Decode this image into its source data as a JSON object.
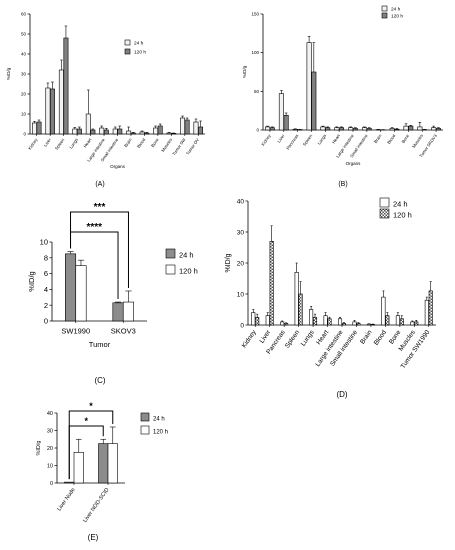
{
  "chart_data": [
    {
      "panel_label": "(A)",
      "type": "bar",
      "ylabel": "%ID/g",
      "xlabel": "Organs",
      "ylim": [
        0,
        60
      ],
      "yticks": [
        0,
        10,
        20,
        30,
        40,
        50,
        60
      ],
      "categories": [
        "Kidney",
        "Liver",
        "Spleen",
        "Lungs",
        "Heart",
        "Large intestine",
        "Small intestine",
        "Brain",
        "Blood",
        "Bone",
        "Muscles",
        "Tumor SW",
        "Tumor OV"
      ],
      "legend_position": "top-right",
      "series": [
        {
          "name": "24 h",
          "fill": "#f2f2f2",
          "values": [
            5.5,
            23,
            32,
            2.5,
            10,
            3,
            2.5,
            1.5,
            1,
            3,
            0.5,
            8,
            6
          ],
          "errors": [
            0.8,
            2.5,
            5,
            0.8,
            12,
            1,
            1,
            2,
            0.5,
            1,
            0.3,
            1,
            1.5
          ]
        },
        {
          "name": "120 h",
          "fill": "#808080",
          "values": [
            6,
            22.5,
            48,
            2.5,
            2,
            2,
            2.5,
            0.5,
            0.5,
            4,
            0.3,
            7,
            3.5
          ],
          "errors": [
            1,
            3.5,
            6,
            1,
            0.5,
            0.8,
            1.5,
            0.3,
            0.3,
            1,
            0.2,
            1,
            3
          ]
        }
      ]
    },
    {
      "panel_label": "(B)",
      "type": "bar",
      "ylabel": "%ID/g",
      "xlabel": "Organs",
      "ylim": [
        0,
        150
      ],
      "yticks": [
        0,
        50,
        100,
        150
      ],
      "categories": [
        "Kidney",
        "Liver",
        "Pancreas",
        "Spleen",
        "Lungs",
        "Heart",
        "Large intestine",
        "Small intestine",
        "Brain",
        "Blood",
        "Bone",
        "Muscles",
        "Tumor SKOV3"
      ],
      "legend_position": "top-right",
      "series": [
        {
          "name": "24 h",
          "fill": "#f2f2f2",
          "values": [
            4,
            47,
            1,
            113,
            4,
            3,
            3,
            3,
            0.5,
            2,
            5,
            4,
            3
          ],
          "errors": [
            1,
            4,
            0.5,
            8,
            1,
            1,
            1,
            1,
            0.3,
            1,
            3,
            6,
            2
          ]
        },
        {
          "name": "120 h",
          "fill": "#808080",
          "values": [
            3,
            19,
            0.5,
            75,
            3,
            3,
            2,
            2,
            0.3,
            1,
            5,
            0.5,
            2
          ],
          "errors": [
            1,
            3,
            0.3,
            38,
            1,
            1,
            1,
            1,
            0.2,
            1,
            1,
            0.3,
            1
          ]
        }
      ]
    },
    {
      "panel_label": "(C)",
      "type": "bar",
      "ylabel": "%ID/g",
      "xlabel": "Tumor",
      "ylim": [
        0,
        10
      ],
      "yticks": [
        0,
        2,
        4,
        6,
        8,
        10
      ],
      "categories": [
        "SW1990",
        "SKOV3"
      ],
      "legend_position": "right",
      "series": [
        {
          "name": "24 h",
          "fill": "#8c8c8c",
          "values": [
            8.5,
            2.3
          ],
          "errors": [
            0.3,
            0.1
          ]
        },
        {
          "name": "120 h",
          "fill": "#ffffff",
          "values": [
            7.0,
            2.4
          ],
          "errors": [
            0.7,
            1.4
          ]
        }
      ],
      "annotations": [
        "****",
        "***"
      ]
    },
    {
      "panel_label": "(D)",
      "type": "bar",
      "ylabel": "%ID/g",
      "xlabel": "",
      "ylim": [
        0,
        40
      ],
      "yticks": [
        0,
        10,
        20,
        30,
        40
      ],
      "categories": [
        "Kidney",
        "Liver",
        "Pancreas",
        "Spleen",
        "Lungs",
        "Heart",
        "Large intestine",
        "Small intestine",
        "Brain",
        "Blood",
        "Bone",
        "Muscles",
        "Tumor SW1990"
      ],
      "legend_position": "top-right",
      "series": [
        {
          "name": "24 h",
          "fill": "#ffffff",
          "values": [
            4,
            3,
            1,
            17,
            5,
            3,
            2,
            1,
            0.3,
            9,
            3,
            1,
            8
          ],
          "errors": [
            1,
            1,
            0.3,
            3,
            1,
            1,
            0.5,
            0.5,
            0.1,
            2,
            1,
            0.3,
            1
          ]
        },
        {
          "name": "120 h",
          "fill": "#e6e6e6",
          "pattern": "checker",
          "values": [
            2.5,
            27,
            0.5,
            10,
            2.5,
            2,
            0.5,
            0.5,
            0.2,
            3,
            2,
            1,
            11
          ],
          "errors": [
            1,
            5,
            0.2,
            4,
            1,
            0.5,
            0.3,
            0.3,
            0.1,
            1,
            1,
            0.5,
            3
          ]
        }
      ]
    },
    {
      "panel_label": "(E)",
      "type": "bar",
      "ylabel": "%ID/g",
      "xlabel": "",
      "ylim": [
        0,
        40
      ],
      "yticks": [
        0,
        10,
        20,
        30,
        40
      ],
      "categories": [
        "Liver Nude",
        "Liver NOD-SCID"
      ],
      "legend_position": "right",
      "series": [
        {
          "name": "24 h",
          "fill": "#8c8c8c",
          "values": [
            0.5,
            22.5
          ],
          "errors": [
            0,
            2.5
          ]
        },
        {
          "name": "120 h",
          "fill": "#ffffff",
          "values": [
            17.5,
            22.5
          ],
          "errors": [
            7.5,
            9.5
          ]
        }
      ],
      "annotations": [
        "*",
        "*"
      ]
    }
  ]
}
